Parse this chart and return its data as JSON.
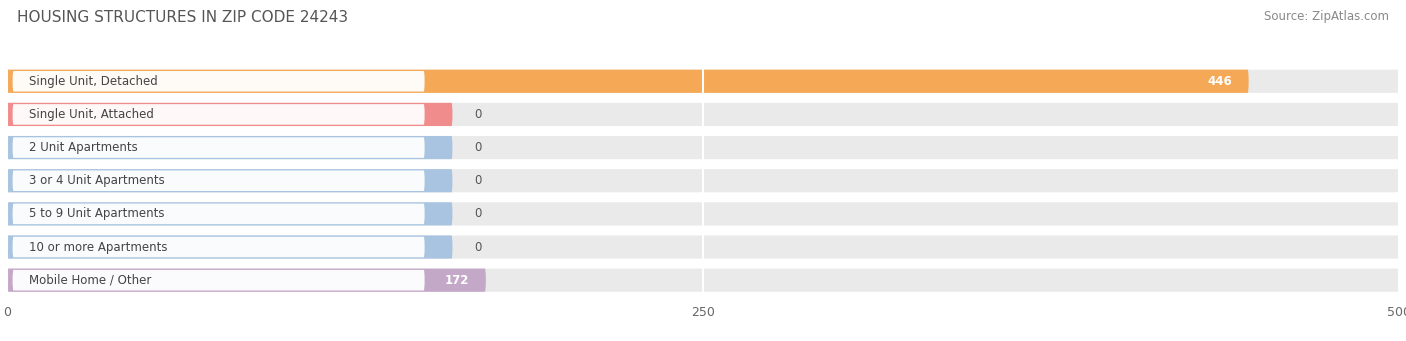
{
  "title": "HOUSING STRUCTURES IN ZIP CODE 24243",
  "source": "Source: ZipAtlas.com",
  "categories": [
    "Single Unit, Detached",
    "Single Unit, Attached",
    "2 Unit Apartments",
    "3 or 4 Unit Apartments",
    "5 to 9 Unit Apartments",
    "10 or more Apartments",
    "Mobile Home / Other"
  ],
  "values": [
    446,
    0,
    0,
    0,
    0,
    0,
    172
  ],
  "bar_colors": [
    "#F5A855",
    "#F08C8C",
    "#A8C4E0",
    "#A8C4E0",
    "#A8C4E0",
    "#A8C4E0",
    "#C4A8C8"
  ],
  "bar_bg_color": "#EAEAEA",
  "xlim": [
    0,
    500
  ],
  "xticks": [
    0,
    250,
    500
  ],
  "title_fontsize": 11,
  "source_fontsize": 8.5,
  "label_fontsize": 8.5,
  "value_fontsize": 8.5,
  "background_color": "#FFFFFF",
  "grid_color": "#FFFFFF",
  "value_label_color_inside": "#FFFFFF",
  "value_label_color_outside": "#555555"
}
